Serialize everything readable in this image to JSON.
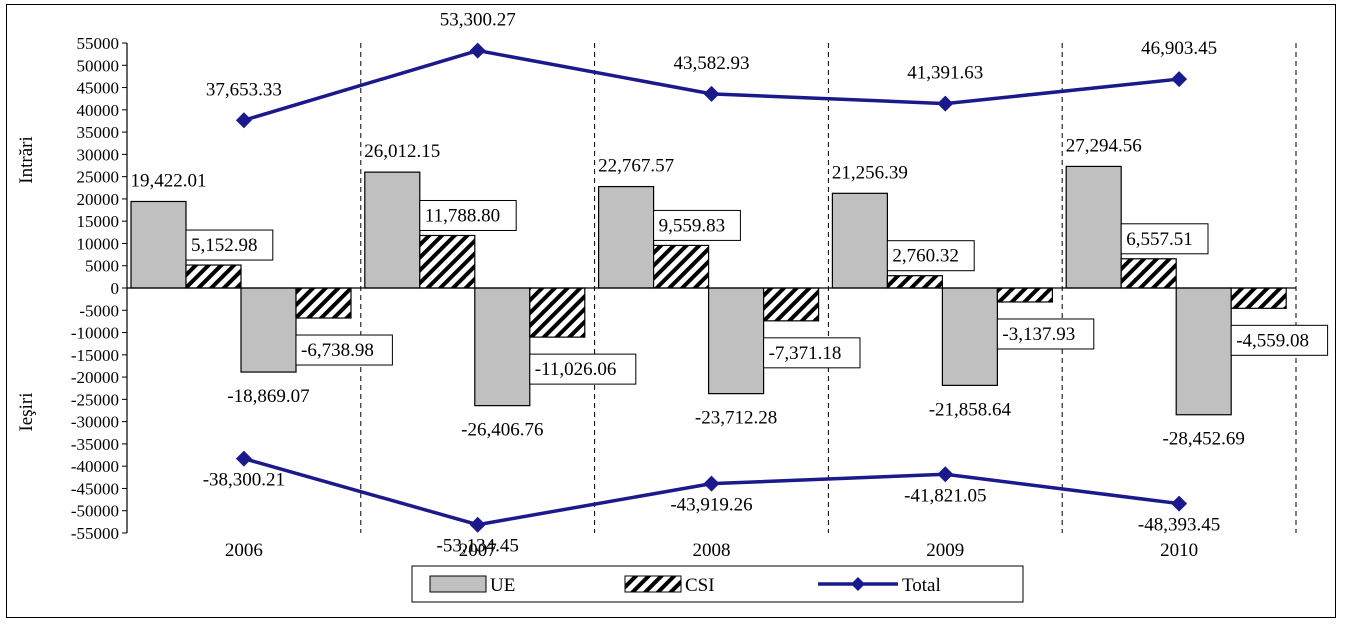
{
  "chart_data": {
    "type": "bar",
    "categories": [
      "2006",
      "2007",
      "2008",
      "2009",
      "2010"
    ],
    "ylabel_top": "Intrări",
    "ylabel_bottom": "Ieşiri",
    "ylim": [
      -55000,
      55000
    ],
    "yticks": [
      "55000",
      "50000",
      "45000",
      "40000",
      "35000",
      "30000",
      "25000",
      "20000",
      "15000",
      "10000",
      "5000",
      "0",
      "-5000",
      "-10000",
      "-15000",
      "-20000",
      "-25000",
      "-30000",
      "-35000",
      "-40000",
      "-45000",
      "-50000",
      "-55000"
    ],
    "bars": [
      {
        "series": "UE",
        "pattern": "solid",
        "values": [
          19422.01,
          26012.15,
          22767.57,
          21256.39,
          27294.56
        ],
        "labels": [
          "19,422.01",
          "26,012.15",
          "22,767.57",
          "21,256.39",
          "27,294.56"
        ]
      },
      {
        "series": "CSI",
        "pattern": "hatch",
        "values": [
          5152.98,
          11788.8,
          9559.83,
          2760.32,
          6557.51
        ],
        "labels": [
          "5,152.98",
          "11,788.80",
          "9,559.83",
          "2,760.32",
          "6,557.51"
        ]
      },
      {
        "series": "UE",
        "pattern": "solid",
        "values": [
          -18869.07,
          -26406.76,
          -23712.28,
          -21858.64,
          -28452.69
        ],
        "labels": [
          "-18,869.07",
          "-26,406.76",
          "-23,712.28",
          "-21,858.64",
          "-28,452.69"
        ]
      },
      {
        "series": "CSI",
        "pattern": "hatch",
        "values": [
          -6738.98,
          -11026.06,
          -7371.18,
          -3137.93,
          -4559.08
        ],
        "labels": [
          "-6,738.98",
          "-11,026.06",
          "-7,371.18",
          "-3,137.93",
          "-4,559.08"
        ]
      }
    ],
    "lines": [
      {
        "series": "Total",
        "values": [
          37653.33,
          53300.27,
          43582.93,
          41391.63,
          46903.45
        ],
        "labels": [
          "37,653.33",
          "53,300.27",
          "43,582.93",
          "41,391.63",
          "46,903.45"
        ]
      },
      {
        "series": "Total",
        "values": [
          -38300.21,
          -53134.45,
          -43919.26,
          -41821.05,
          -48393.45
        ],
        "labels": [
          "-38,300.21",
          "-53,134.45",
          "-43,919.26",
          "-41,821.05",
          "-48,393.45"
        ]
      }
    ],
    "legend": {
      "placement": "bottom",
      "items": [
        {
          "name": "UE",
          "kind": "bar-solid"
        },
        {
          "name": "CSI",
          "kind": "bar-hatch"
        },
        {
          "name": "Total",
          "kind": "line-marker"
        }
      ]
    },
    "colors": {
      "bar_fill": "#c0c0c0",
      "line": "#1a1a8c",
      "axis": "#000000"
    }
  }
}
